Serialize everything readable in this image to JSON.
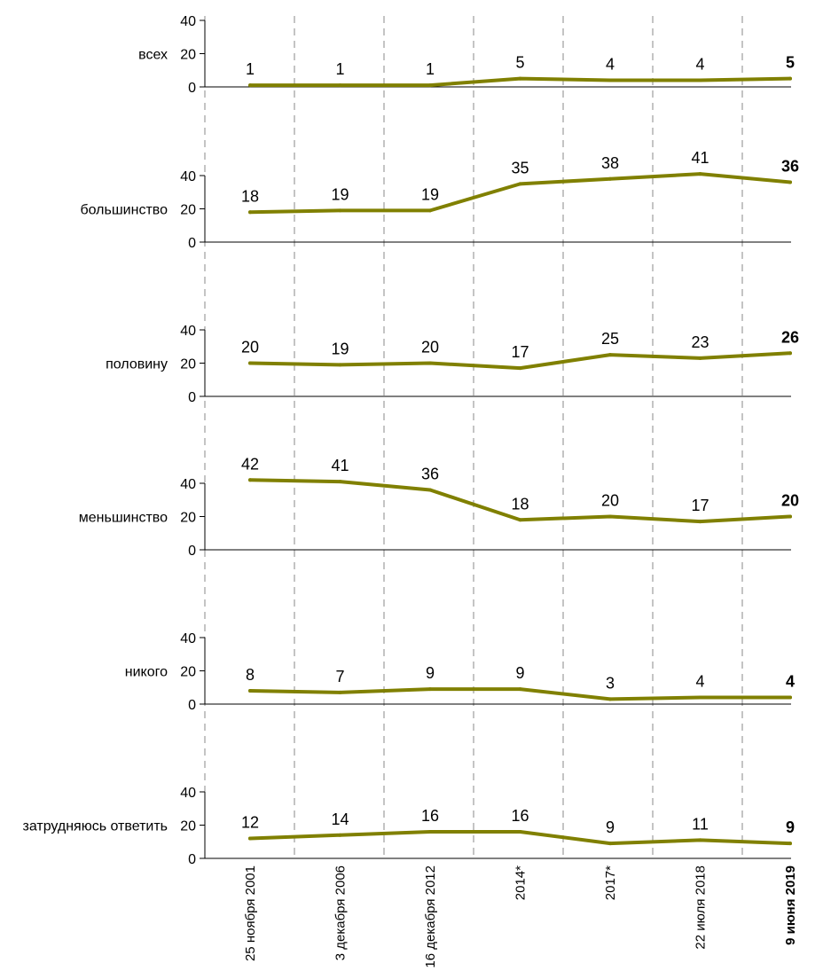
{
  "chart_data": {
    "type": "line",
    "categories": [
      "25 ноября 2001",
      "3 декабря 2006",
      "16 декабря 2012",
      "2014*",
      "2017*",
      "22 июля 2018",
      "9 июня 2019"
    ],
    "y_ticks": [
      "0",
      "20",
      "40"
    ],
    "ylim": [
      0,
      40
    ],
    "highlight_last_category": true,
    "line_color": "#808000",
    "grid": "dashed vertical separators between categories",
    "series": [
      {
        "name": "всех",
        "values": [
          1,
          1,
          1,
          5,
          4,
          4,
          5
        ]
      },
      {
        "name": "большинство",
        "values": [
          18,
          19,
          19,
          35,
          38,
          41,
          36
        ]
      },
      {
        "name": "половину",
        "values": [
          20,
          19,
          20,
          17,
          25,
          23,
          26
        ]
      },
      {
        "name": "меньшинство",
        "values": [
          42,
          41,
          36,
          18,
          20,
          17,
          20
        ]
      },
      {
        "name": "никого",
        "values": [
          8,
          7,
          9,
          9,
          3,
          4,
          4
        ]
      },
      {
        "name": "затрудняюсь ответить",
        "values": [
          12,
          14,
          16,
          16,
          9,
          11,
          9
        ]
      }
    ]
  }
}
